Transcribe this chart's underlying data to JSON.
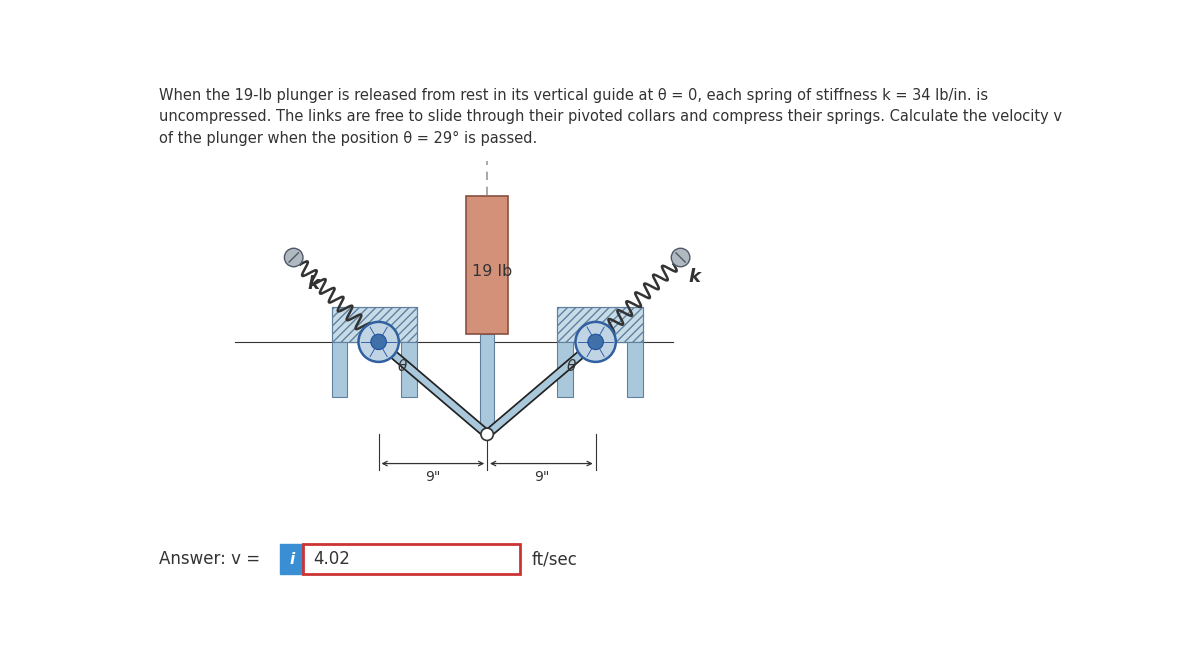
{
  "title_text": "When the 19-lb plunger is released from rest in its vertical guide at θ = 0, each spring of stiffness k = 34 lb/in. is\nuncompressed. The links are free to slide through their pivoted collars and compress their springs. Calculate the velocity v\nof the plunger when the position θ = 29° is passed.",
  "answer_label": "Answer: v =",
  "answer_value": "4.02",
  "answer_unit": "ft/sec",
  "info_icon_color": "#3a8fd4",
  "answer_box_border_color": "#cc3333",
  "plunger_color_top": "#d4917a",
  "plunger_color_bot": "#c07060",
  "guide_color": "#aac8dc",
  "hatch_bg_color": "#c8dce8",
  "spring_color": "#333333",
  "link_dark": "#1a1a1a",
  "link_light": "#aac8dc",
  "pivot_color": "#a0b8c8",
  "dashed_line_color": "#999999",
  "dim_line_color": "#333333",
  "bg_color": "#ffffff",
  "text_color": "#333333",
  "weight_label": "19 lb",
  "k_label": "k",
  "theta_label": "θ",
  "dim_label": "9\"",
  "fig_width": 12.0,
  "fig_height": 6.61
}
